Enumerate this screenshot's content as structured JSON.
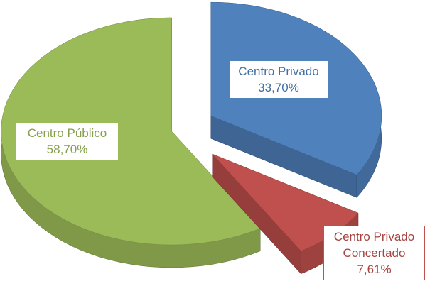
{
  "chart_data": {
    "type": "pie3d",
    "categories": [
      "Centro Privado",
      "Centro Privado Concertado",
      "Centro Público"
    ],
    "values": [
      33.7,
      7.61,
      58.7
    ],
    "value_labels": [
      "33,70%",
      "7,61%",
      "58,70%"
    ],
    "colors": [
      "#4f81bd",
      "#c0504d",
      "#9bbb59"
    ]
  }
}
